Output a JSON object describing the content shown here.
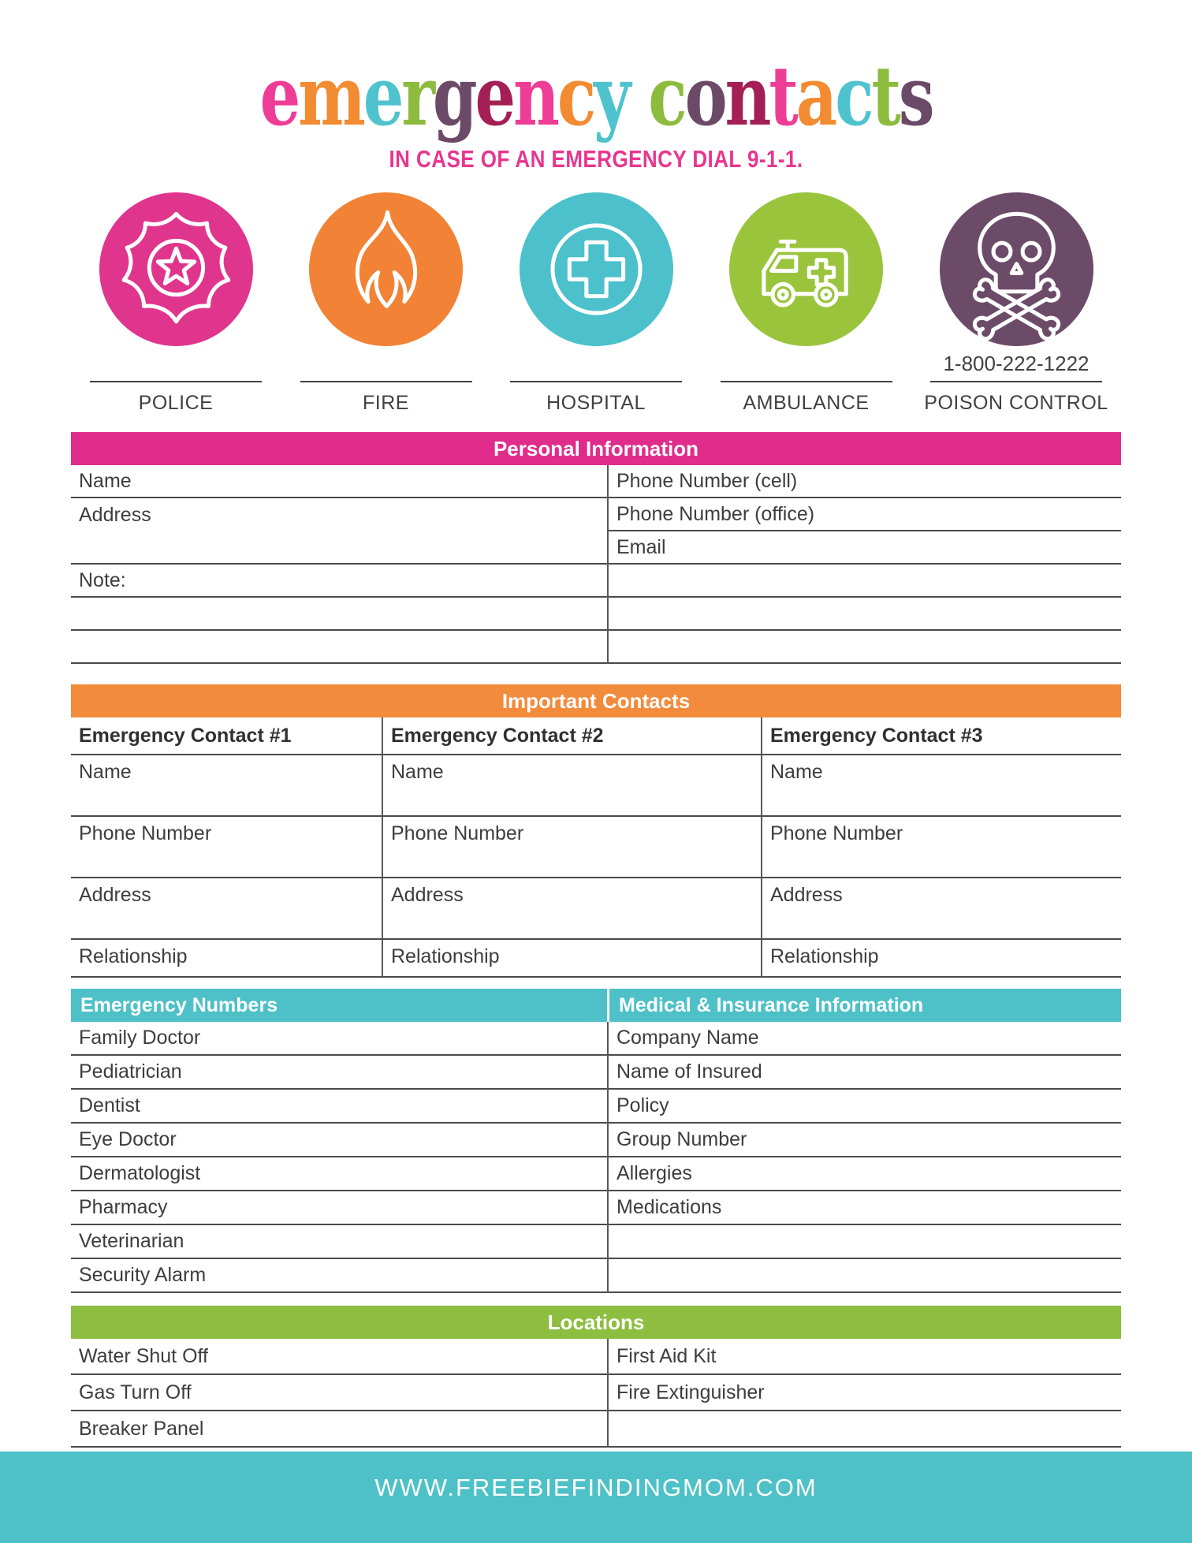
{
  "header": {
    "title_letters": [
      {
        "ch": "e",
        "color": "#ee3d96"
      },
      {
        "ch": "m",
        "color": "#f28b31"
      },
      {
        "ch": "e",
        "color": "#4ec3ce"
      },
      {
        "ch": "r",
        "color": "#8cbb3e"
      },
      {
        "ch": "g",
        "color": "#6b4a68"
      },
      {
        "ch": "e",
        "color": "#a31f55"
      },
      {
        "ch": "n",
        "color": "#ee3d96"
      },
      {
        "ch": "c",
        "color": "#f28b31"
      },
      {
        "ch": "y",
        "color": "#4ec3ce"
      },
      {
        "ch": " ",
        "color": ""
      },
      {
        "ch": "c",
        "color": "#8cbb3e"
      },
      {
        "ch": "o",
        "color": "#6b4a68"
      },
      {
        "ch": "n",
        "color": "#a31f55"
      },
      {
        "ch": "t",
        "color": "#ee3d96"
      },
      {
        "ch": "a",
        "color": "#f28b31"
      },
      {
        "ch": "c",
        "color": "#4ec3ce"
      },
      {
        "ch": "t",
        "color": "#8cbb3e"
      },
      {
        "ch": "s",
        "color": "#6b4a68"
      }
    ],
    "subtitle": "IN CASE OF AN EMERGENCY DIAL 9-1-1.",
    "subtitle_color": "#e8368f"
  },
  "services": [
    {
      "label": "POLICE",
      "icon": "police-badge-icon",
      "circle_color": "#e0358d",
      "phone": ""
    },
    {
      "label": "FIRE",
      "icon": "flame-icon",
      "circle_color": "#f28235",
      "phone": ""
    },
    {
      "label": "HOSPITAL",
      "icon": "medical-cross-icon",
      "circle_color": "#4cc0cb",
      "phone": ""
    },
    {
      "label": "AMBULANCE",
      "icon": "ambulance-icon",
      "circle_color": "#9ac43c",
      "phone": ""
    },
    {
      "label": "POISON CONTROL",
      "icon": "skull-crossbones-icon",
      "circle_color": "#6c4b69",
      "phone": "1-800-222-1222"
    }
  ],
  "sections": {
    "personal": {
      "title": "Personal Information",
      "color": "#e02c8b",
      "left_rows": [
        "Name",
        "Address",
        "Note:",
        "",
        ""
      ],
      "right_rows": [
        "Phone Number (cell)",
        "Phone Number (office)",
        "Email",
        "",
        "",
        ""
      ]
    },
    "contacts": {
      "title": "Important Contacts",
      "color": "#f28b3b",
      "columns": [
        "Emergency Contact #1",
        "Emergency Contact #2",
        "Emergency Contact #3"
      ],
      "rows": [
        "Name",
        "Phone Number",
        "Address",
        "Relationship"
      ]
    },
    "numbers": {
      "title": "Emergency Numbers",
      "color": "#4dc1c7",
      "rows": [
        "Family Doctor",
        "Pediatrician",
        "Dentist",
        "Eye Doctor",
        "Dermatologist",
        "Pharmacy",
        "Veterinarian",
        "Security Alarm"
      ]
    },
    "medical": {
      "title": "Medical & Insurance Information",
      "color": "#4dc1c7",
      "rows": [
        "Company Name",
        "Name of Insured",
        "Policy",
        "Group Number",
        "Allergies",
        "Medications",
        "",
        ""
      ]
    },
    "locations": {
      "title": "Locations",
      "color": "#8dbe3f",
      "left_rows": [
        "Water Shut Off",
        "Gas Turn Off",
        "Breaker Panel"
      ],
      "right_rows": [
        "First Aid Kit",
        "Fire Extinguisher",
        ""
      ]
    }
  },
  "footer": {
    "url": "WWW.FREEBIEFINDINGMOM.COM",
    "color": "#4dc1c7"
  }
}
